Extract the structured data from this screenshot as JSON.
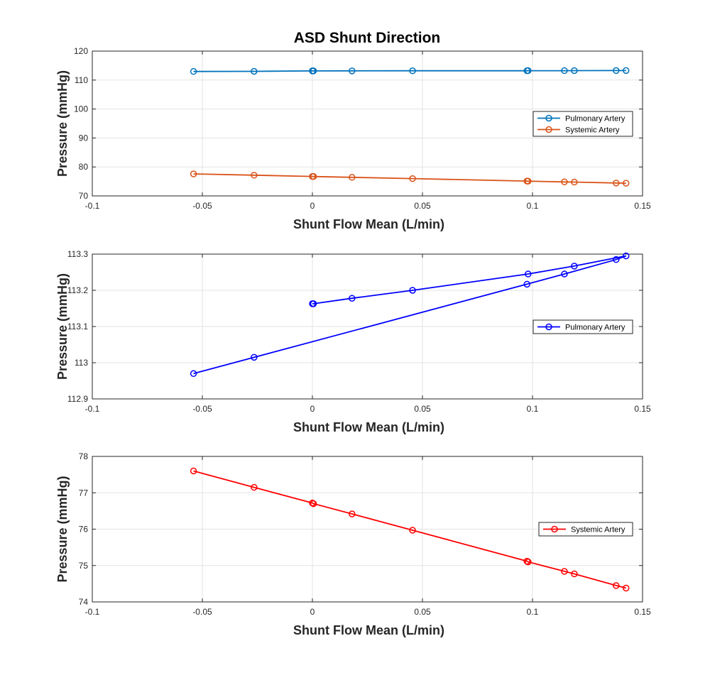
{
  "figure": {
    "title": "ASD Shunt Direction"
  },
  "chart_data": [
    {
      "type": "line",
      "xlabel": "Shunt Flow Mean (L/min)",
      "ylabel": "Pressure (mmHg)",
      "xlim": [
        -0.1,
        0.15
      ],
      "ylim": [
        70,
        120
      ],
      "xticks": [
        -0.1,
        -0.05,
        0,
        0.05,
        0.1,
        0.15
      ],
      "xtick_labels": [
        "-0.1",
        "-0.05",
        "0",
        "0.05",
        "0.1",
        "0.15"
      ],
      "yticks": [
        70,
        80,
        90,
        100,
        110,
        120
      ],
      "ytick_labels": [
        "70",
        "80",
        "90",
        "100",
        "110",
        "120"
      ],
      "grid": true,
      "legend_position": "right",
      "series": [
        {
          "name": "Pulmonary Artery",
          "color": "#0072BD",
          "marker": "circle",
          "x": [
            -0.054,
            -0.0265,
            0.0,
            0.0,
            0.0005,
            0.018,
            0.0455,
            0.0975,
            0.098,
            0.1145,
            0.119,
            0.138,
            0.1425
          ],
          "y": [
            112.97,
            113.015,
            113.163,
            113.163,
            113.163,
            113.178,
            113.2,
            113.217,
            113.245,
            113.245,
            113.267,
            113.285,
            113.295
          ]
        },
        {
          "name": "Systemic Artery",
          "color": "#D95319",
          "marker": "circle",
          "x": [
            -0.054,
            -0.0265,
            0.0,
            0.0005,
            0.018,
            0.0455,
            0.0975,
            0.098,
            0.1145,
            0.119,
            0.138,
            0.1425
          ],
          "y": [
            77.6,
            77.15,
            76.72,
            76.7,
            76.42,
            75.97,
            75.12,
            75.1,
            74.84,
            74.77,
            74.45,
            74.38
          ]
        }
      ]
    },
    {
      "type": "line",
      "xlabel": "Shunt Flow Mean (L/min)",
      "ylabel": "Pressure (mmHg)",
      "xlim": [
        -0.1,
        0.15
      ],
      "ylim": [
        112.9,
        113.3
      ],
      "xticks": [
        -0.1,
        -0.05,
        0,
        0.05,
        0.1,
        0.15
      ],
      "xtick_labels": [
        "-0.1",
        "-0.05",
        "0",
        "0.05",
        "0.1",
        "0.15"
      ],
      "yticks": [
        112.9,
        113,
        113.1,
        113.2,
        113.3
      ],
      "ytick_labels": [
        "112.9",
        "113",
        "113.1",
        "113.2",
        "113.3"
      ],
      "grid": true,
      "legend_position": "right",
      "series": [
        {
          "name": "Pulmonary Artery",
          "color": "#0000FF",
          "marker": "circle",
          "x": [
            -0.054,
            -0.0265,
            0.0975,
            0.1145,
            0.138,
            0.1425,
            0.119,
            0.098,
            0.0455,
            0.018,
            0.0005,
            0.0
          ],
          "y": [
            112.97,
            113.015,
            113.217,
            113.245,
            113.285,
            113.295,
            113.267,
            113.245,
            113.2,
            113.178,
            113.163,
            113.163
          ]
        }
      ]
    },
    {
      "type": "line",
      "xlabel": "Shunt Flow Mean (L/min)",
      "ylabel": "Pressure (mmHg)",
      "xlim": [
        -0.1,
        0.15
      ],
      "ylim": [
        74,
        78
      ],
      "xticks": [
        -0.1,
        -0.05,
        0,
        0.05,
        0.1,
        0.15
      ],
      "xtick_labels": [
        "-0.1",
        "-0.05",
        "0",
        "0.05",
        "0.1",
        "0.15"
      ],
      "yticks": [
        74,
        75,
        76,
        77,
        78
      ],
      "ytick_labels": [
        "74",
        "75",
        "76",
        "77",
        "78"
      ],
      "grid": true,
      "legend_position": "right",
      "series": [
        {
          "name": "Systemic Artery",
          "color": "#FF0000",
          "marker": "circle",
          "x": [
            -0.054,
            -0.0265,
            0.0,
            0.0005,
            0.018,
            0.0455,
            0.0975,
            0.098,
            0.1145,
            0.119,
            0.138,
            0.1425
          ],
          "y": [
            77.6,
            77.15,
            76.72,
            76.7,
            76.42,
            75.97,
            75.12,
            75.1,
            74.84,
            74.77,
            74.45,
            74.38
          ]
        }
      ]
    }
  ]
}
